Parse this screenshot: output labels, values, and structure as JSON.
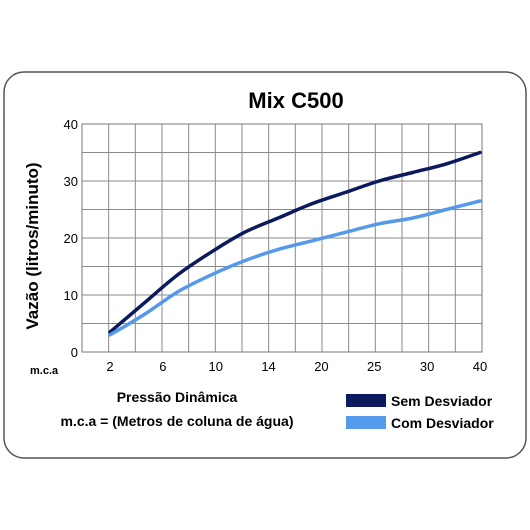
{
  "chart_data": {
    "type": "line",
    "title": "Mix C500",
    "ylabel": "Vazão (litros/minuto)",
    "xlabel": "Pressão Dinâmica",
    "xlabel_note": "m.c.a = (Metros de coluna de água)",
    "x_unit": "m.c.a",
    "x_ticks": [
      "2",
      "6",
      "10",
      "14",
      "20",
      "25",
      "30",
      "40"
    ],
    "y_ticks": [
      0,
      10,
      20,
      30,
      40
    ],
    "ylim": [
      0,
      40
    ],
    "grid": true,
    "legend_position": "bottom-right",
    "series": [
      {
        "name": "Sem Desviador",
        "color": "#0b1a5c",
        "values": [
          3.5,
          8.5,
          13.5,
          17.5,
          21,
          23.5,
          26,
          28,
          30,
          31.5,
          33,
          35
        ]
      },
      {
        "name": "Com Desviador",
        "color": "#5599ea",
        "values": [
          3,
          6.5,
          10.5,
          13.5,
          16,
          18,
          19.5,
          21,
          22.5,
          23.5,
          25,
          26.5
        ]
      }
    ]
  }
}
